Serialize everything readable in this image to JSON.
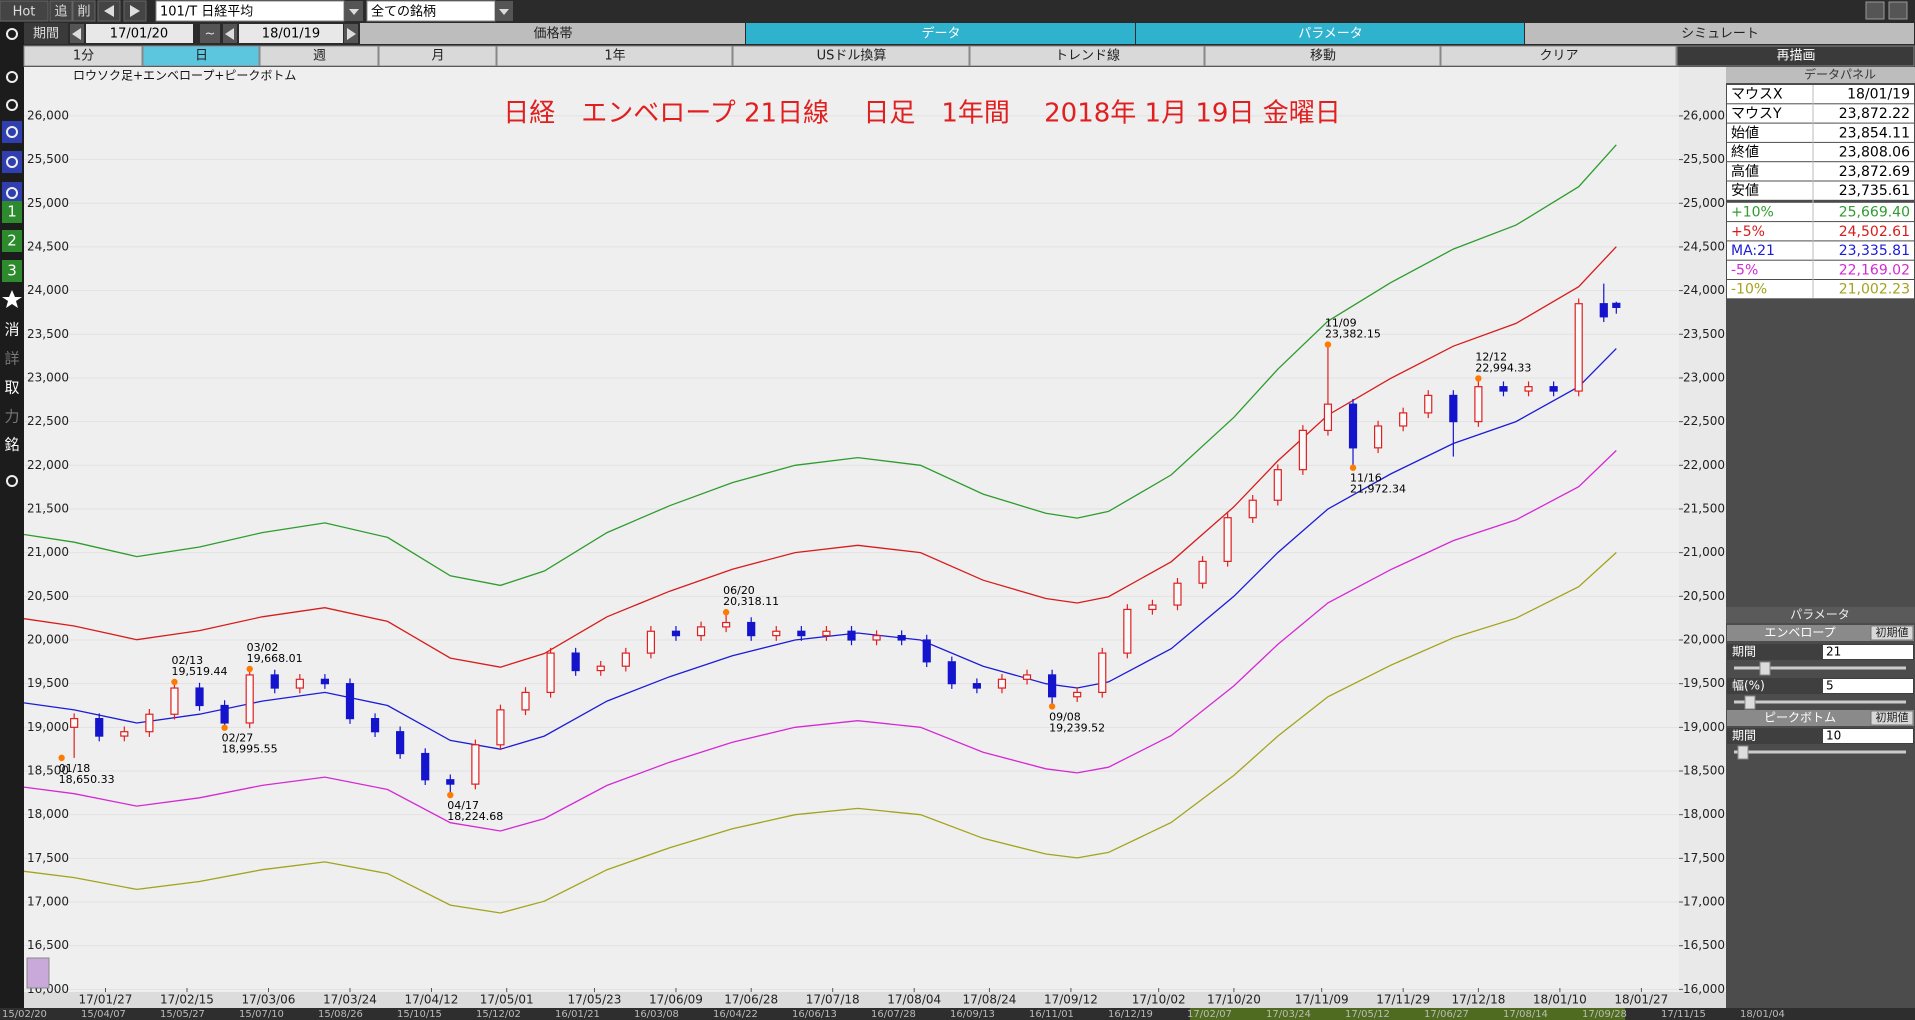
{
  "toolbar": {
    "hot": "Hot",
    "add": "追",
    "delete": "削",
    "symbol": "101/T 日経平均",
    "universe": "全ての銘柄",
    "period_label": "期間",
    "from": "17/01/20",
    "tilde": "~",
    "to": "18/01/19"
  },
  "panel_tabs": [
    "価格帯",
    "データ",
    "パラメータ",
    "シミュレート"
  ],
  "active_panel_tabs": [
    1,
    2
  ],
  "view_tabs": [
    "1分",
    "日",
    "週",
    "月",
    "1年",
    "USドル換算",
    "トレンド線",
    "移動",
    "クリア",
    "再描画"
  ],
  "active_view_tab": 1,
  "sidebar": [
    "1",
    "2",
    "3",
    "消",
    "詳",
    "取",
    "力",
    "銘"
  ],
  "chart_data": {
    "type": "candlestick",
    "title": "日経　エンベロープ 21日線　 日足　1年間　 2018年 1月 19日 金曜日",
    "caption": "ロウソク足+エンベロープ+ピークボトム",
    "x": [
      0,
      4,
      8,
      12,
      16,
      20,
      24,
      28,
      32,
      36,
      40,
      44,
      48,
      52,
      56,
      60,
      64,
      68,
      72,
      76,
      80,
      84,
      88,
      92,
      96,
      100,
      104,
      108,
      112,
      116,
      120,
      124,
      128,
      132,
      136,
      140,
      144,
      148,
      152,
      156,
      160,
      164,
      168,
      172,
      176,
      180,
      184,
      188,
      192,
      196,
      200,
      204,
      208,
      212,
      216,
      220,
      224,
      228,
      232,
      236,
      240,
      244,
      246
    ],
    "open": [
      19000,
      19100,
      18900,
      18950,
      19150,
      19450,
      19250,
      19050,
      19600,
      19450,
      19550,
      19500,
      19100,
      18950,
      18700,
      18400,
      18350,
      18800,
      19200,
      19400,
      19850,
      19650,
      19700,
      19850,
      20100,
      20050,
      20150,
      20200,
      20050,
      20100,
      20050,
      20100,
      20000,
      20050,
      20000,
      19750,
      19500,
      19450,
      19550,
      19600,
      19350,
      19400,
      19850,
      20350,
      20400,
      20650,
      20900,
      21400,
      21600,
      21950,
      22400,
      22700,
      22200,
      22450,
      22600,
      22800,
      22500,
      22900,
      22850,
      22900,
      22850,
      23850,
      23854.11
    ],
    "high": [
      19160,
      19160,
      19010,
      19210,
      19519.44,
      19510,
      19310,
      19668.01,
      19660,
      19610,
      19610,
      19560,
      19160,
      19010,
      18760,
      18460,
      18860,
      19260,
      19460,
      19910,
      19910,
      19760,
      19910,
      20160,
      20160,
      20210,
      20318.11,
      20260,
      20160,
      20160,
      20160,
      20160,
      20110,
      20110,
      20060,
      19810,
      19560,
      19610,
      19660,
      19660,
      19460,
      19910,
      20410,
      20460,
      20710,
      20960,
      21460,
      21660,
      22010,
      22460,
      23382.15,
      22760,
      22510,
      22660,
      22860,
      22860,
      22994.33,
      22960,
      22960,
      22960,
      23910,
      24080,
      23872.69
    ],
    "low": [
      18650.33,
      18840,
      18840,
      18890,
      19090,
      19190,
      18995.55,
      18990,
      19390,
      19390,
      19440,
      19040,
      18890,
      18640,
      18340,
      18224.68,
      18290,
      18740,
      19140,
      19340,
      19590,
      19590,
      19640,
      19790,
      19990,
      19990,
      20090,
      19990,
      19990,
      19990,
      19990,
      19940,
      19940,
      19940,
      19690,
      19440,
      19390,
      19390,
      19490,
      19239.52,
      19290,
      19340,
      19790,
      20290,
      20340,
      20590,
      20840,
      21340,
      21540,
      21890,
      22340,
      21972.34,
      22140,
      22390,
      22540,
      22100,
      22440,
      22790,
      22790,
      22790,
      22790,
      23640,
      23735.61
    ],
    "close": [
      19100,
      18900,
      18950,
      19150,
      19450,
      19250,
      19050,
      19600,
      19450,
      19550,
      19500,
      19100,
      18950,
      18700,
      18400,
      18350,
      18800,
      19200,
      19400,
      19850,
      19650,
      19700,
      19850,
      20100,
      20050,
      20150,
      20200,
      20050,
      20100,
      20050,
      20100,
      20000,
      20050,
      20000,
      19750,
      19500,
      19450,
      19550,
      19600,
      19350,
      19400,
      19850,
      20350,
      20400,
      20650,
      20900,
      21400,
      21600,
      21950,
      22400,
      22700,
      22200,
      22450,
      22600,
      22800,
      22500,
      22900,
      22850,
      22900,
      22850,
      23850,
      23700,
      23808.06
    ],
    "up_color": "#e02020",
    "down_color": "#1414cc",
    "peak_color": "#ff7a00",
    "envelopes": {
      "x": [
        -8,
        0,
        10,
        20,
        30,
        40,
        50,
        60,
        68,
        75,
        85,
        95,
        105,
        115,
        125,
        135,
        145,
        155,
        160,
        165,
        175,
        185,
        192,
        200,
        210,
        220,
        230,
        240,
        246
      ],
      "series": [
        {
          "color": "#2e9c2e",
          "values": [
            21208,
            21120,
            20955,
            21065,
            21230,
            21340,
            21175,
            20735,
            20625,
            20790,
            21230,
            21538,
            21802,
            22000,
            22088,
            22000,
            21670,
            21450,
            21395,
            21472,
            21890,
            22550,
            23100,
            23650,
            24090,
            24475,
            24750,
            25190,
            25669.4
          ]
        },
        {
          "color": "#d81c1c",
          "values": [
            20244,
            20160,
            20003,
            20108,
            20265,
            20370,
            20213,
            19793,
            19688,
            19845,
            20265,
            20559,
            20811,
            21000,
            21084,
            21000,
            20685,
            20475,
            20423,
            20496,
            20895,
            21525,
            22050,
            22575,
            22995,
            23363,
            23625,
            24045,
            24502.61
          ]
        },
        {
          "color": "#1c1cd8",
          "values": [
            19280,
            19200,
            19050,
            19150,
            19300,
            19400,
            19250,
            18850,
            18750,
            18900,
            19300,
            19580,
            19820,
            20000,
            20080,
            20000,
            19700,
            19500,
            19450,
            19520,
            19900,
            20500,
            21000,
            21500,
            21900,
            22250,
            22500,
            22900,
            23335.81
          ]
        },
        {
          "color": "#d42ad4",
          "values": [
            18316,
            18240,
            18098,
            18193,
            18335,
            18430,
            18288,
            17908,
            17813,
            17955,
            18335,
            18601,
            18829,
            19000,
            19076,
            19000,
            18715,
            18525,
            18478,
            18544,
            18905,
            19475,
            19950,
            20425,
            20805,
            21138,
            21375,
            21755,
            22169.02
          ]
        },
        {
          "color": "#a3a31c",
          "values": [
            17352,
            17280,
            17145,
            17235,
            17370,
            17460,
            17325,
            16965,
            16875,
            17010,
            17370,
            17622,
            17838,
            18000,
            18072,
            18000,
            17730,
            17550,
            17505,
            17568,
            17910,
            18450,
            18900,
            19350,
            19710,
            20025,
            20250,
            20610,
            21002.23
          ]
        }
      ]
    },
    "peaks": [
      {
        "date": "01/18",
        "value": 18650.33,
        "label": "18,650.33",
        "x": -2,
        "kind": "bottom"
      },
      {
        "date": "02/13",
        "value": 19519.44,
        "label": "19,519.44",
        "x": 16,
        "kind": "peak"
      },
      {
        "date": "02/27",
        "value": 18995.55,
        "label": "18,995.55",
        "x": 24,
        "kind": "bottom"
      },
      {
        "date": "03/02",
        "value": 19668.01,
        "label": "19,668.01",
        "x": 28,
        "kind": "peak"
      },
      {
        "date": "04/17",
        "value": 18224.68,
        "label": "18,224.68",
        "x": 60,
        "kind": "bottom"
      },
      {
        "date": "06/20",
        "value": 20318.11,
        "label": "20,318.11",
        "x": 104,
        "kind": "peak"
      },
      {
        "date": "09/08",
        "value": 19239.52,
        "label": "19,239.52",
        "x": 156,
        "kind": "bottom"
      },
      {
        "date": "11/09",
        "value": 23382.15,
        "label": "23,382.15",
        "x": 200,
        "kind": "peak"
      },
      {
        "date": "11/16",
        "value": 21972.34,
        "label": "21,972.34",
        "x": 204,
        "kind": "bottom"
      },
      {
        "date": "12/12",
        "value": 22994.33,
        "label": "22,994.33",
        "x": 224,
        "kind": "peak"
      }
    ],
    "xlim": [
      -8,
      256
    ],
    "xticks": [
      {
        "value": 5,
        "label": "17/01/27"
      },
      {
        "value": 18,
        "label": "17/02/15"
      },
      {
        "value": 31,
        "label": "17/03/06"
      },
      {
        "value": 44,
        "label": "17/03/24"
      },
      {
        "value": 57,
        "label": "17/04/12"
      },
      {
        "value": 69,
        "label": "17/05/01"
      },
      {
        "value": 83,
        "label": "17/05/23"
      },
      {
        "value": 96,
        "label": "17/06/09"
      },
      {
        "value": 108,
        "label": "17/06/28"
      },
      {
        "value": 121,
        "label": "17/07/18"
      },
      {
        "value": 134,
        "label": "17/08/04"
      },
      {
        "value": 146,
        "label": "17/08/24"
      },
      {
        "value": 159,
        "label": "17/09/12"
      },
      {
        "value": 173,
        "label": "17/10/02"
      },
      {
        "value": 185,
        "label": "17/10/20"
      },
      {
        "value": 199,
        "label": "17/11/09"
      },
      {
        "value": 212,
        "label": "17/11/29"
      },
      {
        "value": 224,
        "label": "17/12/18"
      },
      {
        "value": 237,
        "label": "18/01/10"
      },
      {
        "value": 250,
        "label": "18/01/27"
      }
    ],
    "ylim": [
      15970,
      26560
    ],
    "yticks": [
      {
        "value": 16000,
        "label": "16,000"
      },
      {
        "value": 16500,
        "label": "16,500"
      },
      {
        "value": 17000,
        "label": "17,000"
      },
      {
        "value": 17500,
        "label": "17,500"
      },
      {
        "value": 18000,
        "label": "18,000"
      },
      {
        "value": 18500,
        "label": "18,500"
      },
      {
        "value": 19000,
        "label": "19,000"
      },
      {
        "value": 19500,
        "label": "19,500"
      },
      {
        "value": 20000,
        "label": "20,000"
      },
      {
        "value": 20500,
        "label": "20,500"
      },
      {
        "value": 21000,
        "label": "21,000"
      },
      {
        "value": 21500,
        "label": "21,500"
      },
      {
        "value": 22000,
        "label": "22,000"
      },
      {
        "value": 22500,
        "label": "22,500"
      },
      {
        "value": 23000,
        "label": "23,000"
      },
      {
        "value": 23500,
        "label": "23,500"
      },
      {
        "value": 24000,
        "label": "24,000"
      },
      {
        "value": 24500,
        "label": "24,500"
      },
      {
        "value": 25000,
        "label": "25,000"
      },
      {
        "value": 25500,
        "label": "25,500"
      },
      {
        "value": 26000,
        "label": "26,000"
      }
    ],
    "grid": true
  },
  "data_panel": {
    "title": "データパネル",
    "rows": [
      [
        "マウスX",
        "18/01/19"
      ],
      [
        "マウスY",
        "23,872.22"
      ],
      [
        "始値",
        "23,854.11"
      ],
      [
        "終値",
        "23,808.06"
      ],
      [
        "高値",
        "23,872.69"
      ],
      [
        "安値",
        "23,735.61"
      ]
    ],
    "envelope_rows": [
      [
        "+10%",
        "25,669.40"
      ],
      [
        "+5%",
        "24,502.61"
      ],
      [
        "MA:21",
        "23,335.81"
      ],
      [
        "-5%",
        "22,169.02"
      ],
      [
        "-10%",
        "21,002.23"
      ]
    ]
  },
  "param_panel": {
    "title": "パラメータ",
    "envelope": {
      "title": "エンベロープ",
      "reset": "初期値",
      "period_label": "期間",
      "period": 21,
      "width_label": "幅(%)",
      "width": 5
    },
    "peak_bottom": {
      "title": "ピークボトム",
      "reset": "初期値",
      "period_label": "期間",
      "period": 10
    }
  },
  "overview_labels": [
    "15/02/20",
    "15/04/07",
    "15/05/27",
    "15/07/10",
    "15/08/26",
    "15/10/15",
    "15/12/02",
    "16/01/21",
    "16/03/08",
    "16/04/22",
    "16/06/13",
    "16/07/28",
    "16/09/13",
    "16/11/01",
    "16/12/19",
    "17/02/07",
    "17/03/24",
    "17/05/12",
    "17/06/27",
    "17/08/14",
    "17/09/28",
    "17/11/15",
    "18/01/04"
  ]
}
